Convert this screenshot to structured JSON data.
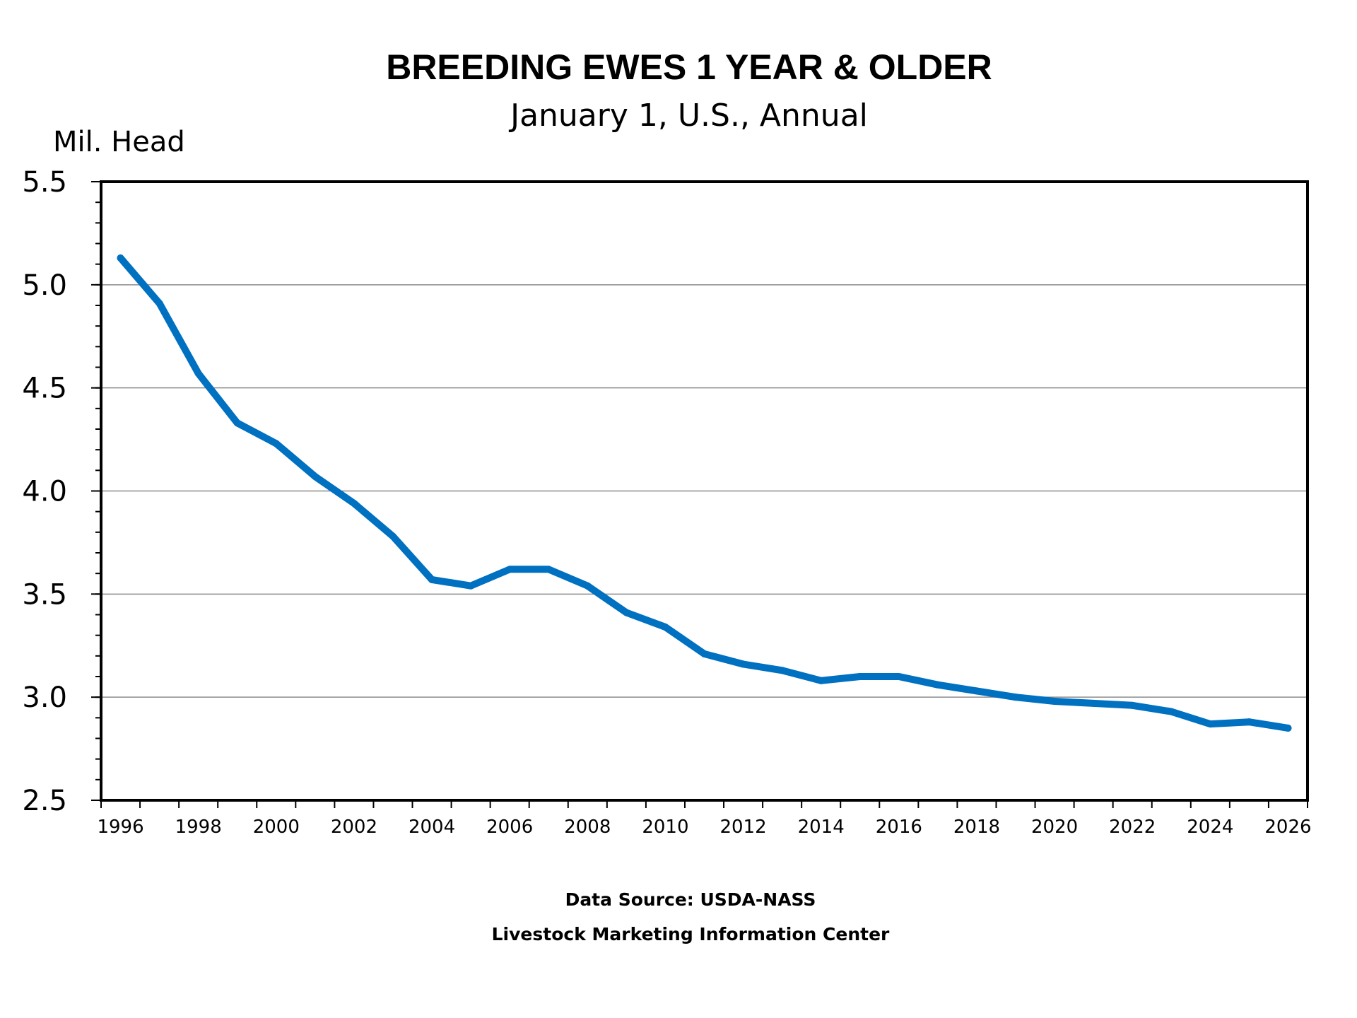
{
  "chart_data": {
    "type": "line",
    "title": "BREEDING EWES 1 YEAR & OLDER",
    "subtitle": "January 1, U.S., Annual",
    "ylabel": "Mil. Head",
    "xlabel": "",
    "ylim": [
      2.5,
      5.5
    ],
    "yticks": [
      "2.5",
      "3.0",
      "3.5",
      "4.0",
      "4.5",
      "5.0",
      "5.5"
    ],
    "xlim": [
      1995.5,
      2026.5
    ],
    "xticks": [
      "1996",
      "1998",
      "2000",
      "2002",
      "2004",
      "2006",
      "2008",
      "2010",
      "2012",
      "2014",
      "2016",
      "2018",
      "2020",
      "2022",
      "2024",
      "2026"
    ],
    "grid": true,
    "series": [
      {
        "name": "Breeding Ewes 1 Year & Older",
        "color": "#0070c0",
        "x": [
          1996,
          1997,
          1998,
          1999,
          2000,
          2001,
          2002,
          2003,
          2004,
          2005,
          2006,
          2007,
          2008,
          2009,
          2010,
          2011,
          2012,
          2013,
          2014,
          2015,
          2016,
          2017,
          2018,
          2019,
          2020,
          2021,
          2022,
          2023,
          2024,
          2025,
          2026
        ],
        "values": [
          5.13,
          4.91,
          4.57,
          4.33,
          4.23,
          4.07,
          3.94,
          3.78,
          3.57,
          3.54,
          3.62,
          3.62,
          3.54,
          3.41,
          3.34,
          3.21,
          3.16,
          3.13,
          3.08,
          3.1,
          3.1,
          3.06,
          3.03,
          3.0,
          2.98,
          2.97,
          2.96,
          2.93,
          2.87,
          2.88,
          2.85
        ]
      }
    ],
    "source_line1": "Data Source:  USDA-NASS",
    "source_line2": "Livestock Marketing Information Center"
  }
}
